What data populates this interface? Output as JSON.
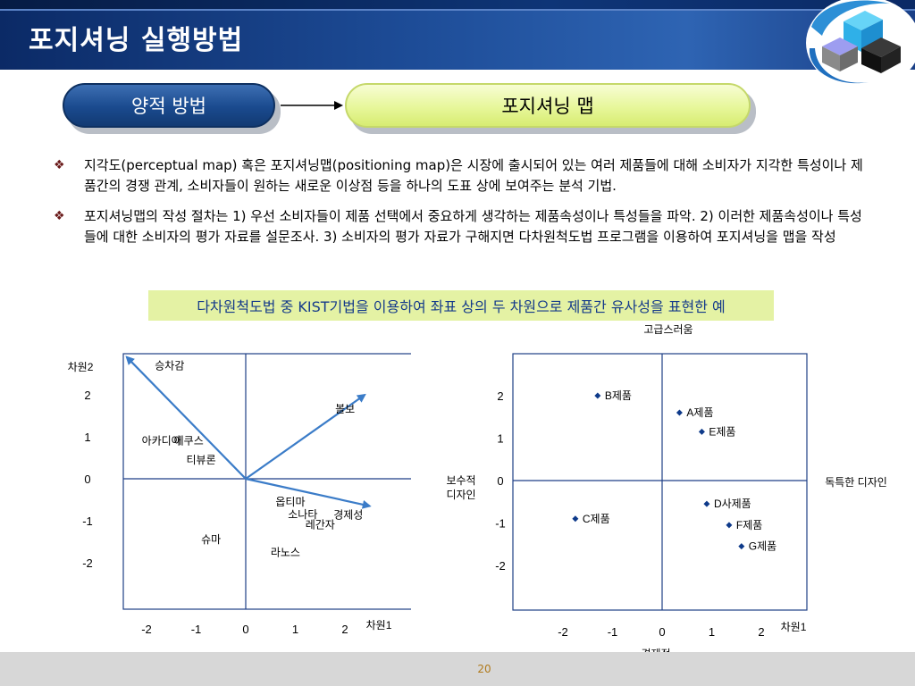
{
  "title": "포지셔닝 실행방법",
  "flow": {
    "left_label": "양적 방법",
    "right_label": "포지셔닝 맵"
  },
  "bullets": [
    "지각도(perceptual map) 혹은 포지셔닝맵(positioning map)은 시장에 출시되어 있는 여러 제품들에 대해 소비자가 지각한 특성이나 제품간의 경쟁 관계, 소비자들이 원하는 새로운 이상점 등을 하나의 도표 상에 보여주는 분석 기법.",
    "포지셔닝맵의 작성 절차는 1) 우선 소비자들이 제품 선택에서 중요하게 생각하는 제품속성이나 특성들을 파악. 2) 이러한 제품속성이나 특성들에 대한 소비자의 평가 자료를 설문조사. 3) 소비자의 평가 자료가 구해지면 다차원척도법 프로그램을 이용하여 포지셔닝을 맵을 작성"
  ],
  "banner": "다차원척도법 중 KIST기법을 이용하여 좌표 상의 두 차원으로 제품간 유사성을 표현한 예",
  "chart_data": [
    {
      "type": "scatter",
      "xlabel": "차원1",
      "ylabel": "차원2",
      "xticks": [
        "-2",
        "-1",
        "0",
        "1",
        "2"
      ],
      "yticks": [
        "2",
        "1",
        "0",
        "-1",
        "-2"
      ],
      "xlim": [
        -2.4,
        2.4
      ],
      "ylim": [
        -2.8,
        3.0
      ],
      "vectors": [
        {
          "name": "승차감",
          "x": -2.4,
          "y": 2.9
        },
        {
          "name": "볼보",
          "x": 2.4,
          "y": 2.0
        },
        {
          "name": "경제성",
          "x": 2.5,
          "y": -0.65
        }
      ],
      "points": [
        {
          "name": "아카디아",
          "x": -1.7,
          "y": 0.9
        },
        {
          "name": "에쿠스",
          "x": -1.15,
          "y": 0.9
        },
        {
          "name": "티뷰론",
          "x": -0.9,
          "y": 0.45
        },
        {
          "name": "옵티마",
          "x": 0.9,
          "y": -0.55
        },
        {
          "name": "소나타",
          "x": 1.15,
          "y": -0.85
        },
        {
          "name": "레간자",
          "x": 1.5,
          "y": -1.1
        },
        {
          "name": "슈마",
          "x": -0.7,
          "y": -1.45
        },
        {
          "name": "라노스",
          "x": 0.8,
          "y": -1.75
        }
      ]
    },
    {
      "type": "scatter",
      "xlabel_right": "차원1",
      "top_label": "고급스러움",
      "bottom_label": "경제적",
      "left_label": [
        "보수적",
        "디자인"
      ],
      "right_label": "독특한 디자인",
      "xticks": [
        "-2",
        "-1",
        "0",
        "1",
        "2"
      ],
      "yticks": [
        "2",
        "1",
        "0",
        "-1",
        "-2"
      ],
      "xlim": [
        -2.6,
        2.6
      ],
      "ylim": [
        -2.95,
        3.0
      ],
      "points": [
        {
          "name": "B제품",
          "x": -1.3,
          "y": 2.0
        },
        {
          "name": "A제품",
          "x": 0.35,
          "y": 1.6
        },
        {
          "name": "E제품",
          "x": 0.8,
          "y": 1.15
        },
        {
          "name": "C제품",
          "x": -1.75,
          "y": -0.9
        },
        {
          "name": "D사제품",
          "x": 0.9,
          "y": -0.55
        },
        {
          "name": "F제품",
          "x": 1.35,
          "y": -1.05
        },
        {
          "name": "G제품",
          "x": 1.6,
          "y": -1.55
        }
      ]
    }
  ],
  "page_number": "20",
  "colors": {
    "title_bar": "#1d4c97",
    "vector": "#3b7cc8",
    "marker": "#0e3a8a",
    "banner_bg": "#e4f2a4",
    "banner_text": "#143a8a"
  }
}
